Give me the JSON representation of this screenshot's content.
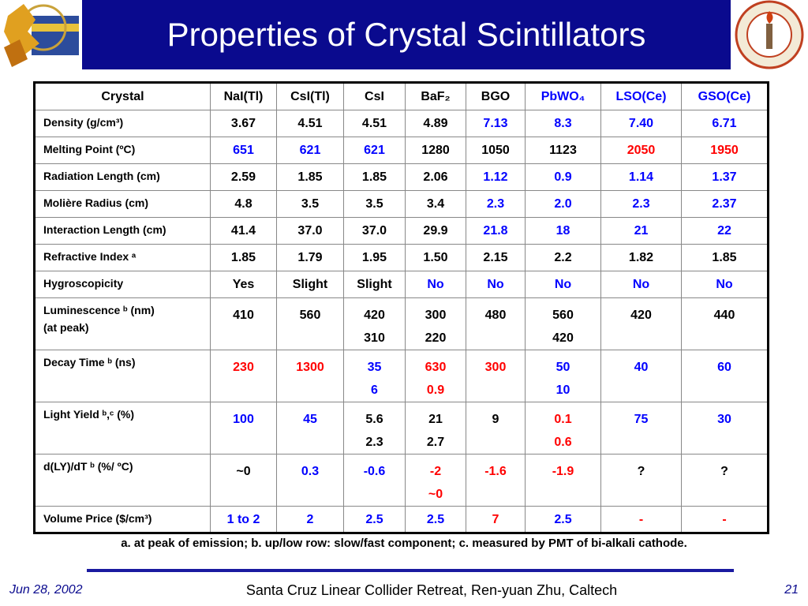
{
  "header": {
    "title": "Properties of Crystal Scintillators"
  },
  "table": {
    "columns": [
      "Crystal",
      "NaI(Tl)",
      "CsI(Tl)",
      "CsI",
      "BaF₂",
      "BGO",
      "PbWO₄",
      "LSO(Ce)",
      "GSO(Ce)"
    ],
    "column_colors": [
      "#000000",
      "#000000",
      "#000000",
      "#000000",
      "#000000",
      "#000000",
      "#0000ff",
      "#0000ff",
      "#0000ff"
    ],
    "rows": [
      {
        "label": "Density (g/cm³)",
        "cells": [
          "3.67",
          "4.51",
          "4.51",
          "4.89",
          "7.13",
          "8.3",
          "7.40",
          "6.71"
        ],
        "colors": [
          "#000000",
          "#000000",
          "#000000",
          "#000000",
          "#0000ff",
          "#0000ff",
          "#0000ff",
          "#0000ff"
        ]
      },
      {
        "label": "Melting Point  (ºC)",
        "cells": [
          "651",
          "621",
          "621",
          "1280",
          "1050",
          "1123",
          "2050",
          "1950"
        ],
        "colors": [
          "#0000ff",
          "#0000ff",
          "#0000ff",
          "#000000",
          "#000000",
          "#000000",
          "#ff0000",
          "#ff0000"
        ]
      },
      {
        "label": "Radiation Length (cm)",
        "cells": [
          "2.59",
          "1.85",
          "1.85",
          "2.06",
          "1.12",
          "0.9",
          "1.14",
          "1.37"
        ],
        "colors": [
          "#000000",
          "#000000",
          "#000000",
          "#000000",
          "#0000ff",
          "#0000ff",
          "#0000ff",
          "#0000ff"
        ]
      },
      {
        "label": "Molière Radius (cm)",
        "cells": [
          "4.8",
          "3.5",
          "3.5",
          "3.4",
          "2.3",
          "2.0",
          "2.3",
          "2.37"
        ],
        "colors": [
          "#000000",
          "#000000",
          "#000000",
          "#000000",
          "#0000ff",
          "#0000ff",
          "#0000ff",
          "#0000ff"
        ]
      },
      {
        "label": "Interaction Length (cm)",
        "cells": [
          "41.4",
          "37.0",
          "37.0",
          "29.9",
          "21.8",
          "18",
          "21",
          "22"
        ],
        "colors": [
          "#000000",
          "#000000",
          "#000000",
          "#000000",
          "#0000ff",
          "#0000ff",
          "#0000ff",
          "#0000ff"
        ]
      },
      {
        "label": "Refractive Index ᵃ",
        "cells": [
          "1.85",
          "1.79",
          "1.95",
          "1.50",
          "2.15",
          "2.2",
          "1.82",
          "1.85"
        ],
        "colors": [
          "#000000",
          "#000000",
          "#000000",
          "#000000",
          "#000000",
          "#000000",
          "#000000",
          "#000000"
        ]
      },
      {
        "label": "Hygroscopicity",
        "cells": [
          "Yes",
          "Slight",
          "Slight",
          "No",
          "No",
          "No",
          "No",
          "No"
        ],
        "colors": [
          "#000000",
          "#000000",
          "#000000",
          "#0000ff",
          "#0000ff",
          "#0000ff",
          "#0000ff",
          "#0000ff"
        ]
      },
      {
        "label": [
          "Luminescence ᵇ (nm)",
          "(at peak)"
        ],
        "cells": [
          "410",
          "560",
          [
            "420",
            "310"
          ],
          [
            "300",
            "220"
          ],
          "480",
          [
            "560",
            "420"
          ],
          "420",
          "440"
        ],
        "colors": [
          "#000000",
          "#000000",
          "#000000",
          "#000000",
          "#000000",
          "#000000",
          "#000000",
          "#000000"
        ]
      },
      {
        "label": "Decay Time ᵇ (ns)",
        "cells": [
          "230",
          "1300",
          [
            "35",
            "6"
          ],
          [
            "630",
            "0.9"
          ],
          "300",
          [
            "50",
            "10"
          ],
          "40",
          "60"
        ],
        "colors": [
          "#ff0000",
          "#ff0000",
          "#0000ff",
          "#ff0000",
          "#ff0000",
          "#0000ff",
          "#0000ff",
          "#0000ff"
        ]
      },
      {
        "label": "Light Yield ᵇ,ᶜ (%)",
        "cells": [
          "100",
          "45",
          [
            "5.6",
            "2.3"
          ],
          [
            "21",
            "2.7"
          ],
          "9",
          [
            "0.1",
            "0.6"
          ],
          "75",
          "30"
        ],
        "colors": [
          "#0000ff",
          "#0000ff",
          "#000000",
          "#000000",
          "#000000",
          "#ff0000",
          "#0000ff",
          "#0000ff"
        ]
      },
      {
        "label": "d(LY)/dT ᵇ (%/ ºC)",
        "cells": [
          "~0",
          "0.3",
          "-0.6",
          [
            "-2",
            "~0"
          ],
          "-1.6",
          "-1.9",
          "?",
          "?"
        ],
        "colors": [
          "#000000",
          "#0000ff",
          "#0000ff",
          "#ff0000",
          "#ff0000",
          "#ff0000",
          "#000000",
          "#000000"
        ]
      },
      {
        "label": "Volume Price ($/cm³)",
        "cells": [
          "1 to 2",
          "2",
          "2.5",
          "2.5",
          "7",
          "2.5",
          "-",
          "-"
        ],
        "colors": [
          "#0000ff",
          "#0000ff",
          "#0000ff",
          "#0000ff",
          "#ff0000",
          "#0000ff",
          "#ff0000",
          "#ff0000"
        ]
      }
    ]
  },
  "footnote": "a. at peak of emission;  b. up/low row: slow/fast component;  c. measured by PMT of bi-alkali cathode.",
  "footer": {
    "date": "Jun 28, 2002",
    "center": "Santa Cruz Linear Collider  Retreat, Ren-yuan Zhu, Caltech",
    "page": "21"
  }
}
